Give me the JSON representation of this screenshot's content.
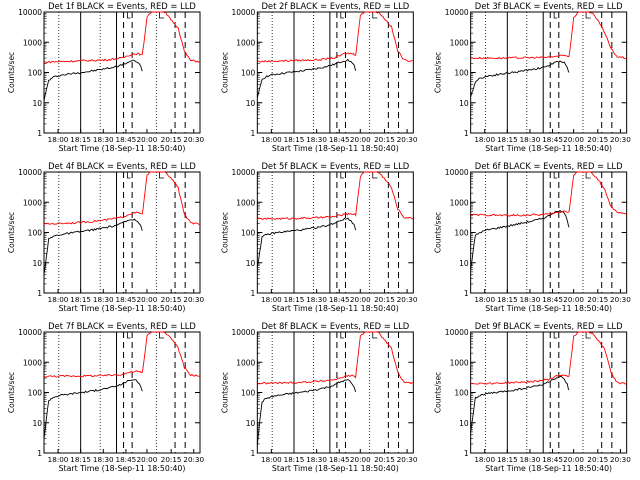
{
  "colors": {
    "events": "#000000",
    "lld": "#ff0000",
    "frame": "#000000"
  },
  "panel_grid": {
    "rows": 3,
    "cols": 3
  },
  "chart_data": [
    {
      "type": "line",
      "title": "Det 1f BLACK = Events, RED = LLD",
      "ylabel": "Counts/sec",
      "xlabel": "Start Time (18-Sep-11 18:50:40)",
      "x_ticks": [
        "18:00",
        "18:15",
        "18:30",
        "18:45",
        "20:00",
        "20:15",
        "20:30"
      ],
      "y_ticks": [
        "1",
        "10",
        "100",
        "1000",
        "10000"
      ],
      "y_scale": "log",
      "ylim": [
        1,
        10000
      ],
      "series": [
        {
          "color": "#000000",
          "x": [
            0.0,
            0.03,
            0.06,
            0.1,
            0.2,
            0.3,
            0.38,
            0.45,
            0.5,
            0.52,
            0.55,
            0.58,
            0.6,
            0.62,
            0.63
          ],
          "y": [
            12,
            55,
            70,
            80,
            95,
            110,
            130,
            150,
            180,
            200,
            230,
            250,
            220,
            160,
            110
          ]
        },
        {
          "color": "#ff0000",
          "x": [
            0.0,
            0.1,
            0.2,
            0.3,
            0.4,
            0.5,
            0.56,
            0.6,
            0.63,
            0.64,
            0.66,
            0.7,
            0.73,
            0.78,
            0.83,
            0.86,
            0.9,
            0.94,
            1.0
          ],
          "y": [
            220,
            230,
            240,
            250,
            260,
            300,
            400,
            420,
            380,
            900,
            7000,
            12000,
            12000,
            9000,
            4500,
            3000,
            500,
            250,
            230
          ]
        }
      ]
    },
    {
      "type": "line",
      "title": "Det 2f BLACK = Events, RED = LLD",
      "ylabel": "Counts/sec",
      "xlabel": "Start Time (18-Sep-11 18:50:40)",
      "x_ticks": [
        "18:00",
        "18:15",
        "18:30",
        "18:45",
        "20:00",
        "20:15",
        "20:30"
      ],
      "y_ticks": [
        "1",
        "10",
        "100",
        "1000",
        "10000"
      ],
      "y_scale": "log",
      "ylim": [
        1,
        10000
      ],
      "series": [
        {
          "color": "#000000",
          "x": [
            0.0,
            0.03,
            0.06,
            0.1,
            0.2,
            0.3,
            0.38,
            0.45,
            0.5,
            0.52,
            0.55,
            0.58,
            0.6,
            0.62,
            0.63
          ],
          "y": [
            14,
            60,
            75,
            85,
            100,
            115,
            135,
            160,
            190,
            210,
            240,
            260,
            230,
            170,
            115
          ]
        },
        {
          "color": "#ff0000",
          "x": [
            0.0,
            0.1,
            0.2,
            0.3,
            0.4,
            0.5,
            0.56,
            0.6,
            0.63,
            0.64,
            0.66,
            0.7,
            0.73,
            0.78,
            0.83,
            0.86,
            0.9,
            0.94,
            1.0
          ],
          "y": [
            230,
            240,
            245,
            255,
            265,
            310,
            420,
            430,
            390,
            950,
            7500,
            12000,
            12000,
            9500,
            5000,
            3200,
            520,
            260,
            240
          ]
        }
      ]
    },
    {
      "type": "line",
      "title": "Det 3f BLACK = Events, RED = LLD",
      "ylabel": "Counts/sec",
      "xlabel": "Start Time (18-Sep-11 18:50:40)",
      "x_ticks": [
        "18:00",
        "18:15",
        "18:30",
        "18:45",
        "20:00",
        "20:15",
        "20:30"
      ],
      "y_ticks": [
        "1",
        "10",
        "100",
        "1000",
        "10000"
      ],
      "y_scale": "log",
      "ylim": [
        1,
        10000
      ],
      "series": [
        {
          "color": "#000000",
          "x": [
            0.0,
            0.03,
            0.06,
            0.1,
            0.2,
            0.3,
            0.38,
            0.45,
            0.5,
            0.52,
            0.55,
            0.58,
            0.6,
            0.62,
            0.63
          ],
          "y": [
            15,
            50,
            65,
            75,
            90,
            105,
            125,
            140,
            170,
            190,
            220,
            240,
            210,
            150,
            100
          ]
        },
        {
          "color": "#ff0000",
          "x": [
            0.0,
            0.1,
            0.2,
            0.3,
            0.4,
            0.5,
            0.56,
            0.6,
            0.63,
            0.64,
            0.66,
            0.7,
            0.73,
            0.78,
            0.83,
            0.86,
            0.9,
            0.94,
            1.0
          ],
          "y": [
            300,
            300,
            300,
            305,
            310,
            320,
            350,
            360,
            340,
            800,
            6500,
            12000,
            12000,
            9000,
            4000,
            2000,
            600,
            330,
            300
          ]
        }
      ]
    },
    {
      "type": "line",
      "title": "Det 4f BLACK = Events, RED = LLD",
      "ylabel": "Counts/sec",
      "xlabel": "Start Time (18-Sep-11 18:50:40)",
      "x_ticks": [
        "18:00",
        "18:15",
        "18:30",
        "18:45",
        "20:00",
        "20:15",
        "20:30"
      ],
      "y_ticks": [
        "1",
        "10",
        "100",
        "1000",
        "10000"
      ],
      "y_scale": "log",
      "ylim": [
        1,
        10000
      ],
      "series": [
        {
          "color": "#000000",
          "x": [
            0.0,
            0.03,
            0.06,
            0.1,
            0.2,
            0.3,
            0.38,
            0.45,
            0.5,
            0.52,
            0.55,
            0.58,
            0.6,
            0.62,
            0.63
          ],
          "y": [
            4,
            60,
            75,
            85,
            100,
            120,
            140,
            165,
            200,
            230,
            260,
            280,
            240,
            170,
            115
          ]
        },
        {
          "color": "#ff0000",
          "x": [
            0.0,
            0.1,
            0.2,
            0.3,
            0.4,
            0.5,
            0.56,
            0.6,
            0.63,
            0.64,
            0.66,
            0.7,
            0.73,
            0.78,
            0.83,
            0.86,
            0.9,
            0.94,
            1.0
          ],
          "y": [
            190,
            200,
            210,
            230,
            260,
            320,
            430,
            450,
            400,
            1000,
            7500,
            12000,
            12000,
            9500,
            5000,
            3000,
            400,
            210,
            180
          ]
        }
      ]
    },
    {
      "type": "line",
      "title": "Det 5f BLACK = Events, RED = LLD",
      "ylabel": "Counts/sec",
      "xlabel": "Start Time (18-Sep-11 18:50:40)",
      "x_ticks": [
        "18:00",
        "18:15",
        "18:30",
        "18:45",
        "20:00",
        "20:15",
        "20:30"
      ],
      "y_ticks": [
        "1",
        "10",
        "100",
        "1000",
        "10000"
      ],
      "y_scale": "log",
      "ylim": [
        1,
        10000
      ],
      "series": [
        {
          "color": "#000000",
          "x": [
            0.0,
            0.03,
            0.06,
            0.1,
            0.2,
            0.3,
            0.38,
            0.45,
            0.5,
            0.52,
            0.55,
            0.58,
            0.6,
            0.62,
            0.63
          ],
          "y": [
            7,
            70,
            85,
            95,
            110,
            125,
            145,
            170,
            210,
            240,
            270,
            290,
            250,
            180,
            120
          ]
        },
        {
          "color": "#ff0000",
          "x": [
            0.0,
            0.1,
            0.2,
            0.3,
            0.4,
            0.5,
            0.56,
            0.6,
            0.63,
            0.64,
            0.66,
            0.7,
            0.73,
            0.78,
            0.83,
            0.86,
            0.9,
            0.94,
            1.0
          ],
          "y": [
            280,
            285,
            290,
            300,
            310,
            340,
            400,
            420,
            390,
            950,
            7000,
            12000,
            12000,
            9500,
            5000,
            3000,
            600,
            320,
            290
          ]
        }
      ]
    },
    {
      "type": "line",
      "title": "Det 6f BLACK = Events, RED = LLD",
      "ylabel": "Counts/sec",
      "xlabel": "Start Time (18-Sep-11 18:50:40)",
      "x_ticks": [
        "18:00",
        "18:15",
        "18:30",
        "18:45",
        "20:00",
        "20:15",
        "20:30"
      ],
      "y_ticks": [
        "1",
        "10",
        "100",
        "1000",
        "10000"
      ],
      "y_scale": "log",
      "ylim": [
        1,
        10000
      ],
      "series": [
        {
          "color": "#000000",
          "x": [
            0.0,
            0.03,
            0.06,
            0.1,
            0.2,
            0.3,
            0.38,
            0.45,
            0.5,
            0.52,
            0.55,
            0.58,
            0.6,
            0.62,
            0.63
          ],
          "y": [
            6,
            80,
            100,
            120,
            150,
            190,
            230,
            280,
            350,
            420,
            480,
            520,
            420,
            260,
            150
          ]
        },
        {
          "color": "#ff0000",
          "x": [
            0.0,
            0.1,
            0.2,
            0.3,
            0.4,
            0.5,
            0.56,
            0.6,
            0.63,
            0.64,
            0.66,
            0.7,
            0.73,
            0.78,
            0.83,
            0.86,
            0.9,
            0.94,
            1.0
          ],
          "y": [
            380,
            380,
            370,
            370,
            380,
            400,
            460,
            520,
            480,
            1100,
            8000,
            12000,
            12000,
            9000,
            4500,
            2500,
            700,
            450,
            400
          ]
        }
      ]
    },
    {
      "type": "line",
      "title": "Det 7f BLACK = Events, RED = LLD",
      "ylabel": "Counts/sec",
      "xlabel": "Start Time (18-Sep-11 18:50:40)",
      "x_ticks": [
        "18:00",
        "18:15",
        "18:30",
        "18:45",
        "20:00",
        "20:15",
        "20:30"
      ],
      "y_ticks": [
        "1",
        "10",
        "100",
        "1000",
        "10000"
      ],
      "y_scale": "log",
      "ylim": [
        1,
        10000
      ],
      "series": [
        {
          "color": "#000000",
          "x": [
            0.0,
            0.03,
            0.06,
            0.1,
            0.2,
            0.3,
            0.38,
            0.45,
            0.5,
            0.52,
            0.55,
            0.58,
            0.6,
            0.62,
            0.63
          ],
          "y": [
            3,
            55,
            70,
            80,
            95,
            110,
            130,
            155,
            190,
            220,
            250,
            270,
            230,
            160,
            110
          ]
        },
        {
          "color": "#ff0000",
          "x": [
            0.0,
            0.1,
            0.2,
            0.3,
            0.4,
            0.5,
            0.56,
            0.6,
            0.63,
            0.64,
            0.66,
            0.7,
            0.73,
            0.78,
            0.83,
            0.86,
            0.9,
            0.94,
            1.0
          ],
          "y": [
            340,
            345,
            350,
            355,
            365,
            400,
            480,
            500,
            450,
            1000,
            7500,
            12000,
            12000,
            9500,
            5000,
            3000,
            650,
            380,
            350
          ]
        }
      ]
    },
    {
      "type": "line",
      "title": "Det 8f BLACK = Events, RED = LLD",
      "ylabel": "Counts/sec",
      "xlabel": "Start Time (18-Sep-11 18:50:40)",
      "x_ticks": [
        "18:00",
        "18:15",
        "18:30",
        "18:45",
        "20:00",
        "20:15",
        "20:30"
      ],
      "y_ticks": [
        "1",
        "10",
        "100",
        "1000",
        "10000"
      ],
      "y_scale": "log",
      "ylim": [
        1,
        10000
      ],
      "series": [
        {
          "color": "#000000",
          "x": [
            0.0,
            0.03,
            0.06,
            0.1,
            0.2,
            0.3,
            0.38,
            0.45,
            0.5,
            0.52,
            0.55,
            0.58,
            0.6,
            0.62,
            0.63
          ],
          "y": [
            2,
            50,
            65,
            75,
            90,
            105,
            125,
            150,
            180,
            210,
            240,
            260,
            220,
            150,
            105
          ]
        },
        {
          "color": "#ff0000",
          "x": [
            0.0,
            0.1,
            0.2,
            0.3,
            0.4,
            0.5,
            0.56,
            0.6,
            0.63,
            0.64,
            0.66,
            0.7,
            0.73,
            0.78,
            0.83,
            0.86,
            0.9,
            0.94,
            1.0
          ],
          "y": [
            200,
            205,
            210,
            220,
            235,
            270,
            340,
            360,
            330,
            850,
            7000,
            12000,
            12000,
            9000,
            4500,
            2800,
            450,
            220,
            200
          ]
        }
      ]
    },
    {
      "type": "line",
      "title": "Det 9f BLACK = Events, RED = LLD",
      "ylabel": "Counts/sec",
      "xlabel": "Start Time (18-Sep-11 18:50:40)",
      "x_ticks": [
        "18:00",
        "18:15",
        "18:30",
        "18:45",
        "20:00",
        "20:15",
        "20:30"
      ],
      "y_ticks": [
        "1",
        "10",
        "100",
        "1000",
        "10000"
      ],
      "y_scale": "log",
      "ylim": [
        1,
        10000
      ],
      "series": [
        {
          "color": "#000000",
          "x": [
            0.0,
            0.03,
            0.06,
            0.1,
            0.2,
            0.3,
            0.38,
            0.45,
            0.5,
            0.52,
            0.55,
            0.58,
            0.6,
            0.62,
            0.63
          ],
          "y": [
            5,
            65,
            80,
            90,
            105,
            125,
            150,
            175,
            220,
            260,
            300,
            320,
            270,
            180,
            120
          ]
        },
        {
          "color": "#ff0000",
          "x": [
            0.0,
            0.1,
            0.2,
            0.3,
            0.4,
            0.5,
            0.56,
            0.6,
            0.63,
            0.64,
            0.66,
            0.7,
            0.73,
            0.78,
            0.83,
            0.86,
            0.9,
            0.94,
            1.0
          ],
          "y": [
            200,
            200,
            205,
            215,
            230,
            270,
            360,
            380,
            350,
            900,
            7000,
            12000,
            12000,
            9000,
            4500,
            2600,
            450,
            210,
            190
          ]
        }
      ]
    }
  ]
}
